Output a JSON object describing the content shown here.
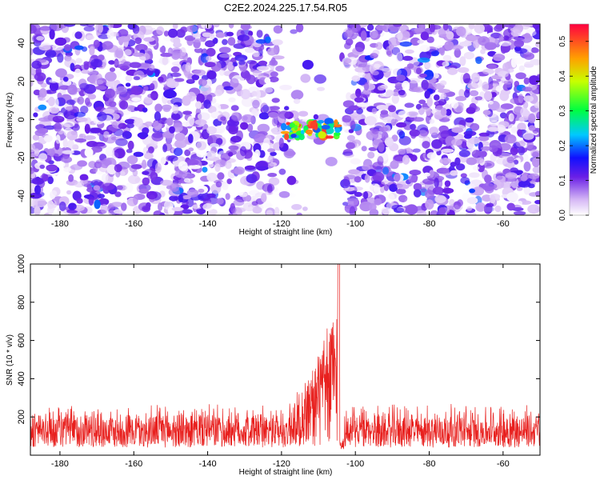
{
  "title": "C2E2.2024.225.17.54.R05",
  "chart_data": [
    {
      "type": "heatmap",
      "xlabel": "Height of straight line (km)",
      "ylabel": "Frequency (Hz)",
      "xlim": [
        -188,
        -50
      ],
      "ylim": [
        -50,
        50
      ],
      "xticks": [
        -180,
        -160,
        -140,
        -120,
        -100,
        -80,
        -60
      ],
      "yticks": [
        -40,
        -20,
        0,
        20,
        40
      ],
      "colorbar": {
        "label": "Normalized spectral amplitude",
        "range": [
          0.0,
          0.55
        ],
        "ticks": [
          "0.0",
          "0.1",
          "0.2",
          "0.3",
          "0.4",
          "0.5"
        ]
      },
      "hotspot": {
        "x": -112,
        "y": -5
      },
      "gap": {
        "x_from": -106,
        "x_to": -104
      },
      "grid": false
    },
    {
      "type": "line",
      "xlabel": "Height of straight line (km)",
      "ylabel": "SNR (10 * v/v)",
      "xlim": [
        -188,
        -50
      ],
      "ylim": [
        0,
        1000
      ],
      "xticks": [
        -180,
        -160,
        -140,
        -120,
        -100,
        -80,
        -60
      ],
      "yticks": [
        200,
        400,
        600,
        800,
        1000
      ],
      "series": [
        {
          "baseline": 130,
          "noise_max": 320,
          "peak_x": -104.5,
          "peak_y": 1000,
          "rise_start": -118,
          "color": "#e8201e"
        }
      ],
      "grid": false
    }
  ]
}
